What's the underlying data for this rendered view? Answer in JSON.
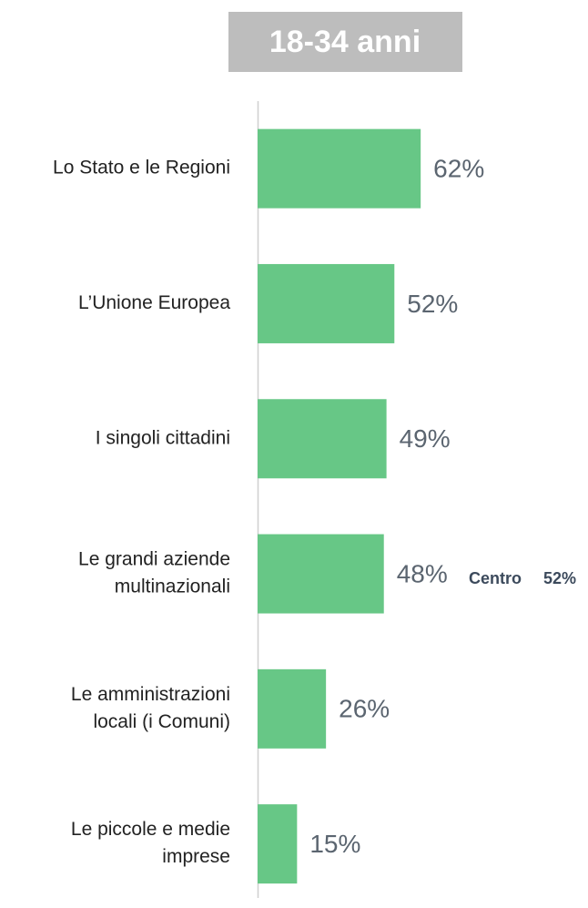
{
  "chart_data": {
    "type": "barh",
    "title": "18-34 anni",
    "categories": [
      [
        "Lo Stato e le Regioni"
      ],
      [
        "L’Unione Europea"
      ],
      [
        "I singoli cittadini"
      ],
      [
        "Le grandi aziende",
        "multinazionali"
      ],
      [
        "Le amministrazioni",
        "locali (i Comuni)"
      ],
      [
        "Le piccole e medie",
        "imprese"
      ]
    ],
    "values": [
      62,
      52,
      49,
      48,
      26,
      15
    ],
    "value_labels": [
      "62%",
      "52%",
      "49%",
      "48%",
      "26%",
      "15%"
    ],
    "color": "#67c786",
    "xlim": [
      0,
      100
    ],
    "annotations": [
      {
        "text": "Centro",
        "label": "52%"
      }
    ]
  }
}
